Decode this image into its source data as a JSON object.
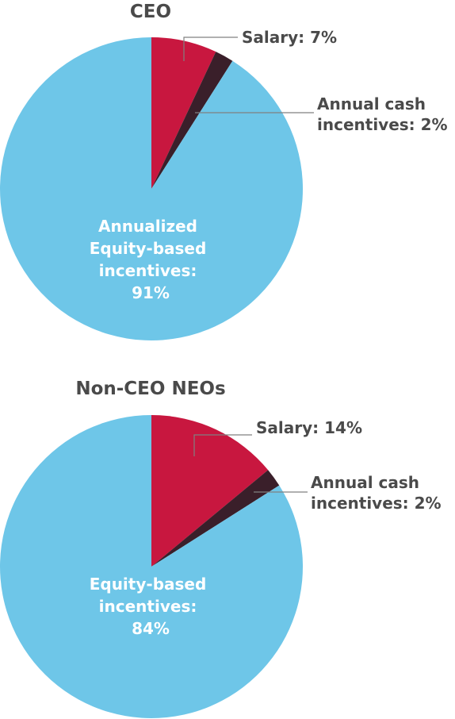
{
  "chart_data": [
    {
      "type": "pie",
      "title": "CEO",
      "slices": [
        {
          "label": "Salary",
          "value": 7,
          "text": "Salary: 7%",
          "color": "#c8173f"
        },
        {
          "label": "Annual cash incentives",
          "value": 2,
          "text_lines": [
            "Annual cash",
            "incentives: 2%"
          ],
          "color": "#3a1f2a"
        },
        {
          "label": "Annualized Equity-based incentives",
          "value": 91,
          "text_lines": [
            "Annualized",
            "Equity-based",
            "incentives:",
            "91%"
          ],
          "color": "#6ec6e8"
        }
      ]
    },
    {
      "type": "pie",
      "title": "Non-CEO NEOs",
      "slices": [
        {
          "label": "Salary",
          "value": 14,
          "text": "Salary: 14%",
          "color": "#c8173f"
        },
        {
          "label": "Annual cash incentives",
          "value": 2,
          "text_lines": [
            "Annual cash",
            "incentives: 2%"
          ],
          "color": "#3a1f2a"
        },
        {
          "label": "Equity-based incentives",
          "value": 84,
          "text_lines": [
            "Equity-based",
            "incentives:",
            "84%"
          ],
          "color": "#6ec6e8"
        }
      ]
    }
  ]
}
